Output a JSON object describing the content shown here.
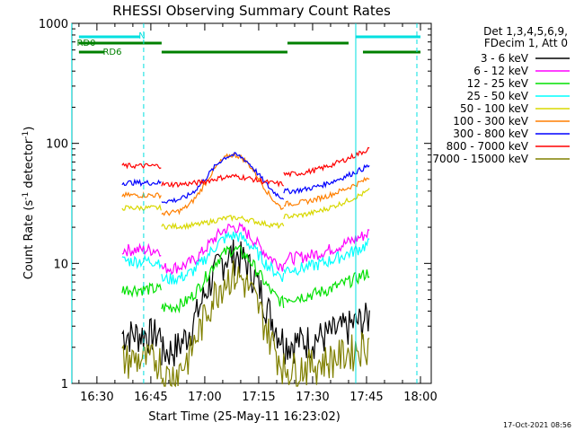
{
  "chart_data": {
    "type": "line",
    "title": "RHESSI Observing Summary Count Rates",
    "ylabel_main": "Count Rate (s",
    "ylabel_sup1": "-1",
    "ylabel_mid": " detector",
    "ylabel_sup2": "-1",
    "ylabel_end": ")",
    "xlabel": "Start Time (25-May-11 16:23:02)",
    "y_scale": "log",
    "ylim": [
      1,
      1000
    ],
    "xlim": [
      "16:23:02",
      "18:03:00"
    ],
    "x_ticks": [
      "16:30",
      "16:45",
      "17:00",
      "17:15",
      "17:30",
      "17:45",
      "18:00"
    ],
    "y_ticks": [
      "1",
      "10",
      "100",
      "1000"
    ],
    "legend_header": [
      "Det 1,3,4,5,6,9,",
      "FDecim 1, Att 0"
    ],
    "legend_position": "right",
    "series": [
      {
        "name": "3 - 6 keV",
        "color": "#000000",
        "gap_level": 2.6,
        "peak_level": 12
      },
      {
        "name": "6 - 12 keV",
        "color": "#ff00ff",
        "gap_level": 13,
        "peak_level": 20
      },
      {
        "name": "12 - 25 keV",
        "color": "#00e000",
        "gap_level": 6.1,
        "peak_level": 13
      },
      {
        "name": "25 - 50 keV",
        "color": "#00ffff",
        "gap_level": 10.5,
        "peak_level": 17
      },
      {
        "name": "50 - 100 keV",
        "color": "#d8d800",
        "gap_level": 29,
        "peak_level": 24
      },
      {
        "name": "100 - 300 keV",
        "color": "#ff7f00",
        "gap_level": 37,
        "peak_level": 80
      },
      {
        "name": "300 - 800 keV",
        "color": "#0000ff",
        "gap_level": 47,
        "peak_level": 80
      },
      {
        "name": "800 - 7000 keV",
        "color": "#ff0000",
        "gap_level": 65,
        "peak_level": 53
      },
      {
        "name": "7000 - 15000 keV",
        "color": "#808000",
        "gap_level": 1.6,
        "peak_level": 8
      }
    ],
    "data_windows": [
      [
        "16:37",
        "16:48"
      ],
      [
        "17:22",
        "17:46"
      ]
    ],
    "rd_windows": [
      [
        "16:48",
        "17:22"
      ]
    ],
    "flag_labels": [
      "RD0",
      "RD6",
      "N"
    ],
    "flags": [
      {
        "label": "RD0",
        "color": "#008000",
        "ranges": [
          [
            "16:25",
            "16:48"
          ],
          [
            "17:23",
            "17:40"
          ]
        ]
      },
      {
        "label": "RD6",
        "color": "#008000",
        "ranges": [
          [
            "16:25",
            "16:32"
          ],
          [
            "16:48",
            "17:23"
          ],
          [
            "17:44",
            "18:00"
          ]
        ]
      },
      {
        "label": "N",
        "color": "#00e0e0",
        "ranges": [
          [
            "16:25",
            "16:42"
          ],
          [
            "17:42",
            "18:00"
          ]
        ]
      }
    ],
    "vlines": [
      {
        "time": "16:43",
        "style": "dashed",
        "color": "#00e0e0"
      },
      {
        "time": "17:42",
        "style": "solid",
        "color": "#00e0e0"
      },
      {
        "time": "17:59",
        "style": "dashed",
        "color": "#00e0e0"
      },
      {
        "time": "16:23",
        "style": "solid",
        "color": "#00e0e0"
      }
    ],
    "timestamp": "17-Oct-2021 08:56"
  }
}
